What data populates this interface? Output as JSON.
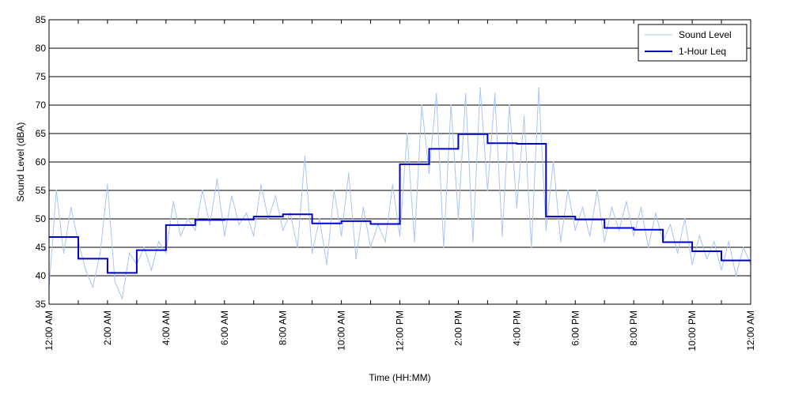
{
  "chart_data": {
    "type": "line",
    "title": "",
    "xlabel": "Time (HH:MM)",
    "ylabel": "Sound Level (dBA)",
    "ylim": [
      35,
      85
    ],
    "xlim": [
      0,
      24
    ],
    "yticks": [
      35,
      40,
      45,
      50,
      55,
      60,
      65,
      70,
      75,
      80,
      85
    ],
    "xticks": [
      {
        "hour": 0,
        "label": "12:00 AM"
      },
      {
        "hour": 2,
        "label": "2:00 AM"
      },
      {
        "hour": 4,
        "label": "4:00 AM"
      },
      {
        "hour": 6,
        "label": "6:00 AM"
      },
      {
        "hour": 8,
        "label": "8:00 AM"
      },
      {
        "hour": 10,
        "label": "10:00 AM"
      },
      {
        "hour": 12,
        "label": "12:00 PM"
      },
      {
        "hour": 14,
        "label": "2:00 PM"
      },
      {
        "hour": 16,
        "label": "4:00 PM"
      },
      {
        "hour": 18,
        "label": "6:00 PM"
      },
      {
        "hour": 20,
        "label": "8:00 PM"
      },
      {
        "hour": 22,
        "label": "10:00 PM"
      },
      {
        "hour": 24,
        "label": "12:00 AM"
      }
    ],
    "grid": "horizontal",
    "legend_position": "top-right",
    "colors": {
      "sound_level": "#a9c4f5",
      "leq": "#0000cc",
      "grid": "#000000"
    },
    "series": [
      {
        "name": "Sound Level",
        "style": "thin-line",
        "hour": [
          0,
          0.25,
          0.5,
          0.75,
          1,
          1.25,
          1.5,
          1.75,
          2,
          2.25,
          2.5,
          2.75,
          3,
          3.25,
          3.5,
          3.75,
          4,
          4.25,
          4.5,
          4.75,
          5,
          5.25,
          5.5,
          5.75,
          6,
          6.25,
          6.5,
          6.75,
          7,
          7.25,
          7.5,
          7.75,
          8,
          8.25,
          8.5,
          8.75,
          9,
          9.25,
          9.5,
          9.75,
          10,
          10.25,
          10.5,
          10.75,
          11,
          11.25,
          11.5,
          11.75,
          12,
          12.25,
          12.5,
          12.75,
          13,
          13.25,
          13.5,
          13.75,
          14,
          14.25,
          14.5,
          14.75,
          15,
          15.25,
          15.5,
          15.75,
          16,
          16.25,
          16.5,
          16.75,
          17,
          17.25,
          17.5,
          17.75,
          18,
          18.25,
          18.5,
          18.75,
          19,
          19.25,
          19.5,
          19.75,
          20,
          20.25,
          20.5,
          20.75,
          21,
          21.25,
          21.5,
          21.75,
          22,
          22.25,
          22.5,
          22.75,
          23,
          23.25,
          23.5,
          23.75,
          24
        ],
        "values": [
          38,
          55,
          44,
          52,
          46,
          41,
          38,
          44,
          56,
          39,
          36,
          44,
          42,
          45,
          41,
          46,
          44,
          53,
          47,
          50,
          48,
          55,
          49,
          57,
          47,
          54,
          49,
          51,
          47,
          56,
          50,
          54,
          48,
          51,
          45,
          61,
          44,
          50,
          42,
          55,
          47,
          58,
          43,
          52,
          45,
          49,
          46,
          56,
          47,
          65,
          46,
          70,
          58,
          72,
          45,
          70,
          50,
          72,
          46,
          73,
          55,
          72,
          47,
          70,
          52,
          68,
          45,
          73,
          48,
          60,
          46,
          55,
          48,
          52,
          47,
          55,
          46,
          52,
          48,
          53,
          47,
          52,
          45,
          51,
          46,
          49,
          44,
          50,
          42,
          47,
          43,
          46,
          41,
          46,
          40,
          45,
          42
        ]
      },
      {
        "name": "1-Hour Leq",
        "style": "step",
        "hour_start": [
          0,
          1,
          2,
          3,
          4,
          5,
          6,
          7,
          8,
          9,
          10,
          11,
          12,
          13,
          14,
          15,
          16,
          17,
          18,
          19,
          20,
          21,
          22,
          23
        ],
        "values": [
          46.8,
          43.0,
          40.5,
          44.5,
          48.9,
          49.8,
          49.9,
          50.4,
          50.8,
          49.2,
          49.6,
          49.1,
          59.6,
          62.3,
          64.9,
          63.3,
          63.2,
          50.4,
          49.9,
          48.4,
          48.1,
          45.9,
          44.3,
          42.7
        ]
      }
    ]
  }
}
